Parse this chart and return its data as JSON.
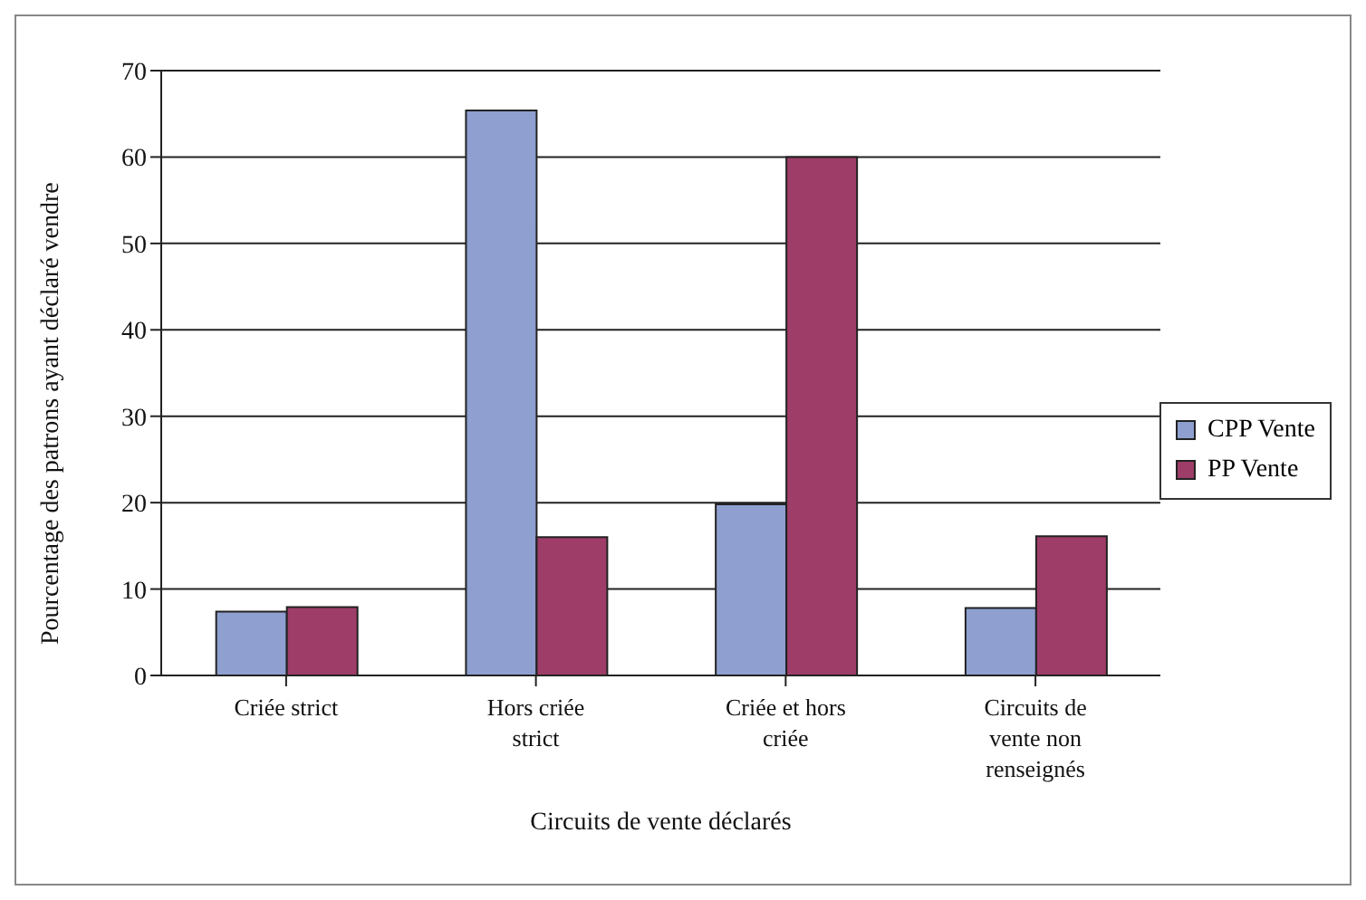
{
  "chart_data": {
    "type": "bar",
    "xlabel": "Circuits de vente déclarés",
    "ylabel": "Pourcentage des patrons ayant déclaré vendre",
    "categories": [
      "Criée strict",
      "Hors criée strict",
      "Criée et hors criée",
      "Circuits de vente non renseignés"
    ],
    "series": [
      {
        "name": "CPP Vente",
        "color": "#8e9fd0",
        "values": [
          7.4,
          65.4,
          19.8,
          7.8
        ]
      },
      {
        "name": "PP Vente",
        "color": "#9e3d68",
        "values": [
          7.9,
          16,
          60,
          16.1
        ]
      }
    ],
    "ylim": [
      0,
      70
    ],
    "yticks": [
      0,
      10,
      20,
      30,
      40,
      50,
      60,
      70
    ],
    "grid": "y",
    "legend": "right"
  }
}
